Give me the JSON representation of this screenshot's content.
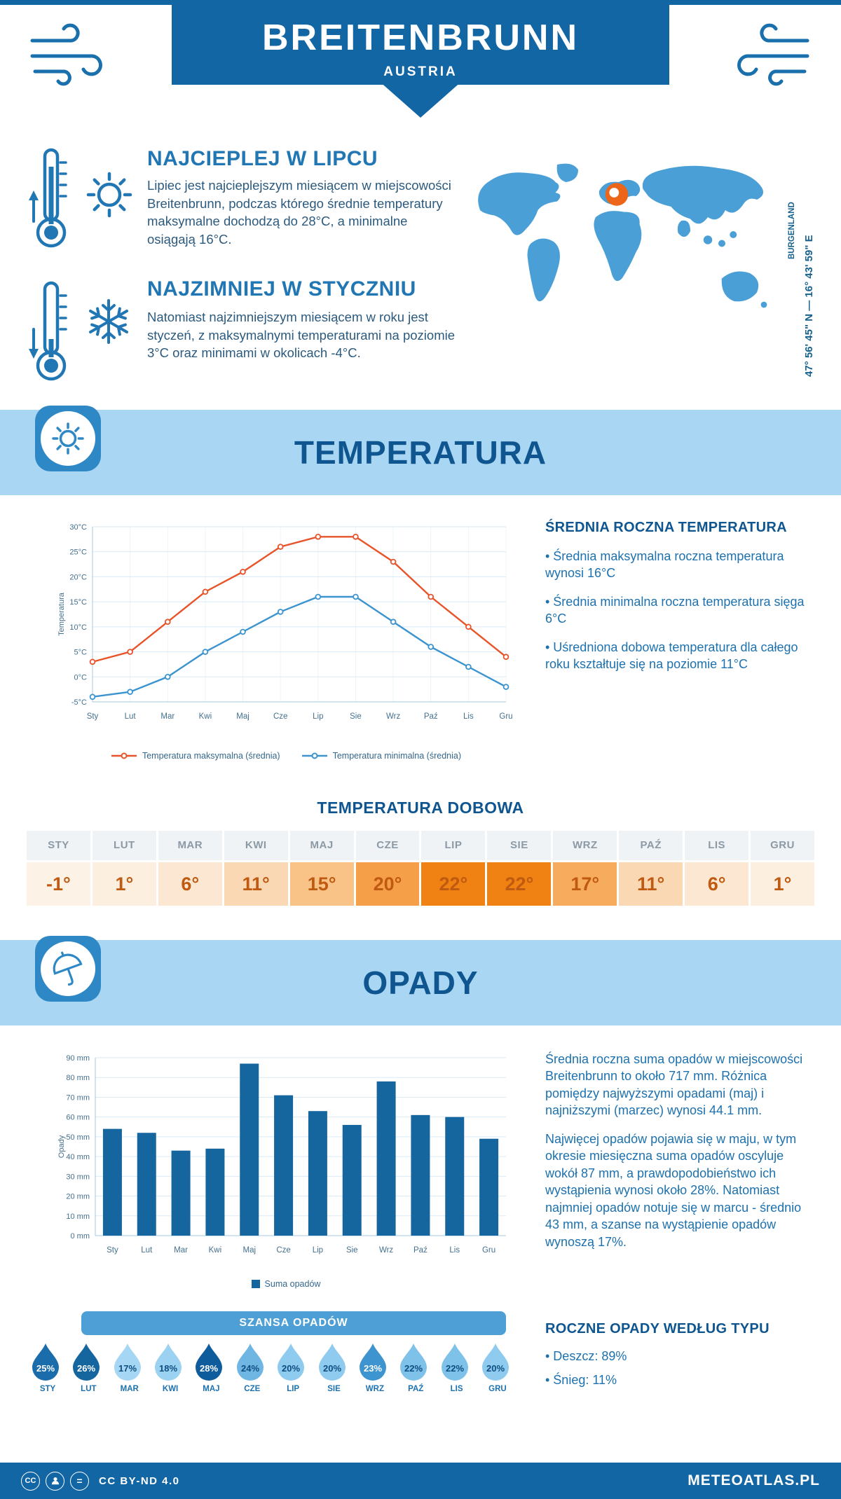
{
  "header": {
    "title": "BREITENBRUNN",
    "subtitle": "AUSTRIA"
  },
  "location": {
    "coordinates": "47° 56' 45\" N — 16° 43' 59\" E",
    "region": "BURGENLAND"
  },
  "warmest": {
    "title": "NAJCIEPLEJ W LIPCU",
    "text": "Lipiec jest najcieplejszym miesiącem w miejscowości Breitenbrunn, podczas którego średnie temperatury maksymalne dochodzą do 28°C, a minimalne osiągają 16°C."
  },
  "coldest": {
    "title": "NAJZIMNIEJ W STYCZNIU",
    "text": "Natomiast najzimniejszym miesiącem w roku jest styczeń, z maksymalnymi temperaturami na poziomie 3°C oraz minimami w okolicach -4°C."
  },
  "temperature": {
    "banner": "TEMPERATURA",
    "summary_title": "ŚREDNIA ROCZNA TEMPERATURA",
    "bullets": [
      "• Średnia maksymalna roczna temperatura wynosi 16°C",
      "• Średnia minimalna roczna temperatura sięga 6°C",
      "• Uśredniona dobowa temperatura dla całego roku kształtuje się na poziomie 11°C"
    ]
  },
  "daily_temp": {
    "title": "TEMPERATURA DOBOWA",
    "months": [
      "STY",
      "LUT",
      "MAR",
      "KWI",
      "MAJ",
      "CZE",
      "LIP",
      "SIE",
      "WRZ",
      "PAŹ",
      "LIS",
      "GRU"
    ],
    "values": [
      "-1°",
      "1°",
      "6°",
      "11°",
      "15°",
      "20°",
      "22°",
      "22°",
      "17°",
      "11°",
      "6°",
      "1°"
    ],
    "colors": [
      "#fdf2e6",
      "#fdefdf",
      "#fce8d2",
      "#fbd8b4",
      "#f9c287",
      "#f5a049",
      "#f08214",
      "#f08214",
      "#f7ab5c",
      "#fbd8b4",
      "#fce8d2",
      "#fdefdf"
    ]
  },
  "precipitation": {
    "banner": "OPADY",
    "paragraphs": [
      "Średnia roczna suma opadów w miejscowości Breitenbrunn to około 717 mm. Różnica pomiędzy najwyższymi opadami (maj) i najniższymi (marzec) wynosi 44.1 mm.",
      "Najwięcej opadów pojawia się w maju, w tym okresie miesięczna suma opadów oscyluje wokół 87 mm, a prawdopodobieństwo ich wystąpienia wynosi około 28%. Natomiast najmniej opadów notuje się w marcu - średnio 43 mm, a szanse na wystąpienie opadów wynoszą 17%."
    ],
    "type_title": "ROCZNE OPADY WEDŁUG TYPU",
    "type_bullets": [
      "• Deszcz: 89%",
      "• Śnieg: 11%"
    ]
  },
  "rain_chance": {
    "title": "SZANSA OPADÓW",
    "months": [
      "STY",
      "LUT",
      "MAR",
      "KWI",
      "MAJ",
      "CZE",
      "LIP",
      "SIE",
      "WRZ",
      "PAŹ",
      "LIS",
      "GRU"
    ],
    "values": [
      25,
      26,
      17,
      18,
      28,
      24,
      20,
      20,
      23,
      22,
      22,
      20
    ],
    "fills": [
      "#1a6cab",
      "#15659f",
      "#a5d6f3",
      "#9bd1f1",
      "#0e5c9c",
      "#6fb6e3",
      "#8ecbee",
      "#8ecbee",
      "#3d94cf",
      "#7fc2e9",
      "#7fc2e9",
      "#8ecbee"
    ],
    "text_colors": [
      "#ffffff",
      "#ffffff",
      "#0d4d80",
      "#0d4d80",
      "#ffffff",
      "#0d4d80",
      "#0d4d80",
      "#0d4d80",
      "#ffffff",
      "#0d4d80",
      "#0d4d80",
      "#0d4d80"
    ]
  },
  "footer": {
    "cc_label": "CC",
    "nd_label": "=",
    "license": "CC BY-ND 4.0",
    "brand": "METEOATLAS.PL"
  },
  "chart_data": [
    {
      "type": "line",
      "title": "TEMPERATURA",
      "categories": [
        "Sty",
        "Lut",
        "Mar",
        "Kwi",
        "Maj",
        "Cze",
        "Lip",
        "Sie",
        "Wrz",
        "Paź",
        "Lis",
        "Gru"
      ],
      "series": [
        {
          "name": "Temperatura maksymalna (średnia)",
          "color": "#e9532a",
          "values": [
            3,
            5,
            11,
            17,
            21,
            26,
            28,
            28,
            23,
            16,
            10,
            4
          ]
        },
        {
          "name": "Temperatura minimalna (średnia)",
          "color": "#3b93cf",
          "values": [
            -4,
            -3,
            0,
            5,
            9,
            13,
            16,
            16,
            11,
            6,
            2,
            -2
          ]
        }
      ],
      "xlabel": "",
      "ylabel": "Temperatura",
      "ylim": [
        -5,
        30
      ],
      "ytick_step": 5,
      "ytick_suffix": "°C",
      "grid": true,
      "legend_position": "bottom"
    },
    {
      "type": "bar",
      "title": "OPADY",
      "categories": [
        "Sty",
        "Lut",
        "Mar",
        "Kwi",
        "Maj",
        "Cze",
        "Lip",
        "Sie",
        "Wrz",
        "Paź",
        "Lis",
        "Gru"
      ],
      "values": [
        54,
        52,
        43,
        44,
        87,
        71,
        63,
        56,
        78,
        61,
        60,
        49
      ],
      "legend": "Suma opadów",
      "xlabel": "",
      "ylabel": "Opady",
      "ylim": [
        0,
        90
      ],
      "ytick_step": 10,
      "ytick_suffix": " mm",
      "bar_color": "#15669f",
      "grid": true,
      "legend_position": "bottom"
    }
  ]
}
